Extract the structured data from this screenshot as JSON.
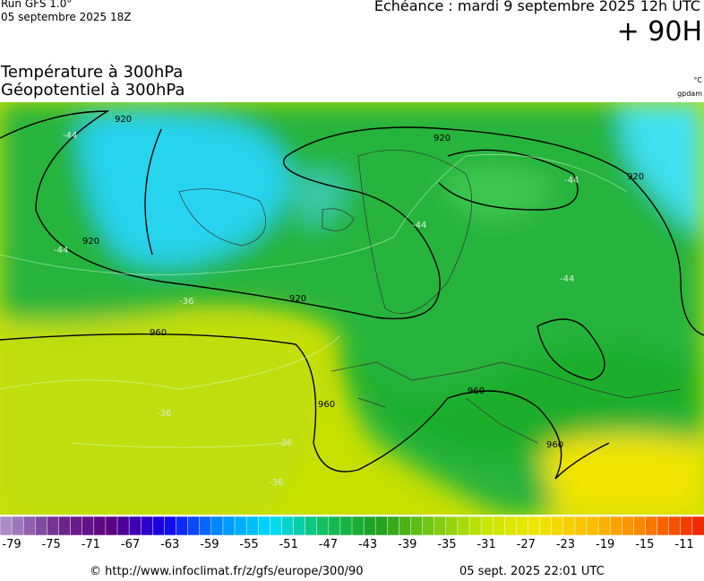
{
  "header": {
    "run": "Run GFS 1.0°",
    "run_date": "05 septembre 2025 18Z",
    "forecast": "Echéance : mardi 9 septembre 2025 12h UTC",
    "lead": "+ 90H",
    "title1": "Température à 300hPa",
    "title2": "Géopotentiel à 300hPa",
    "unit1": "°C",
    "unit2": "gpdam"
  },
  "map": {
    "contour_labels": [
      "920",
      "920",
      "920",
      "920",
      "920",
      "960",
      "960",
      "960",
      "960",
      "-44",
      "-44",
      "-44",
      "-44",
      "-44",
      "-36",
      "-36",
      "-36",
      "-36"
    ]
  },
  "legend": {
    "labels": [
      "-79",
      "-75",
      "-71",
      "-67",
      "-63",
      "-59",
      "-55",
      "-51",
      "-47",
      "-43",
      "-39",
      "-35",
      "-31",
      "-27",
      "-23",
      "-19",
      "-15",
      "-11"
    ]
  },
  "footer": {
    "source": "© http://www.infoclimat.fr/z/gfs/europe/300/90",
    "generated": "05 sept. 2025 22:01 UTC"
  }
}
